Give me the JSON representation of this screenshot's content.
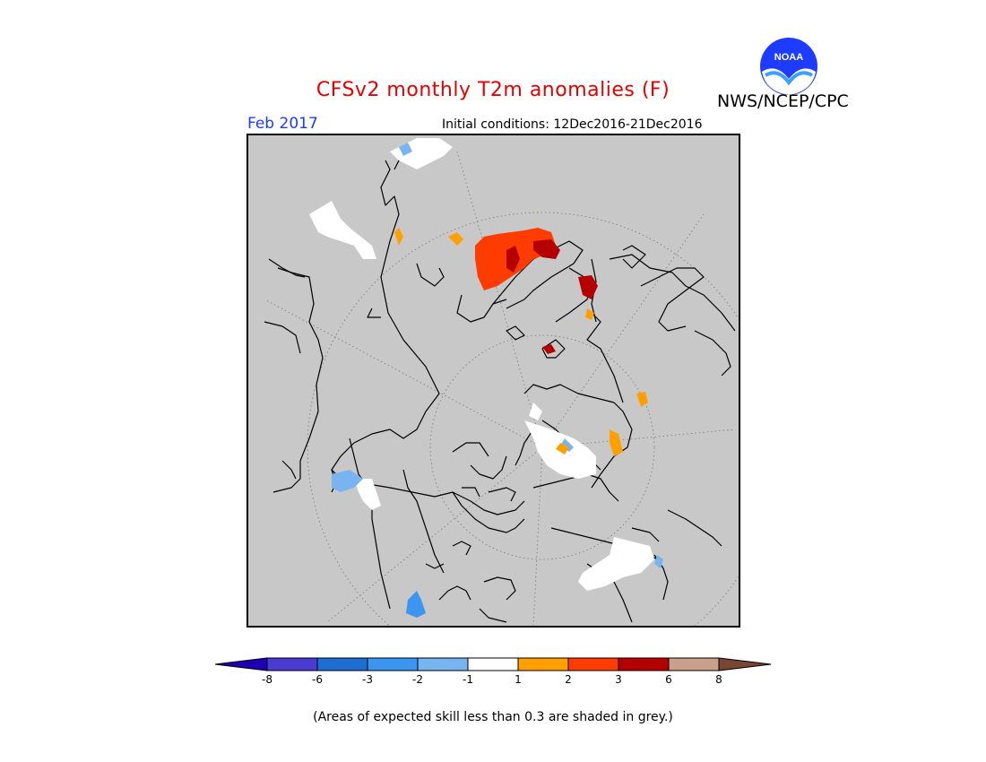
{
  "header": {
    "title": "CFSv2 monthly T2m anomalies (F)",
    "organization": "NWS/NCEP/CPC",
    "logo_text": "NOAA",
    "period": "Feb 2017",
    "initial_conditions": "Initial conditions: 12Dec2016-21Dec2016"
  },
  "map": {
    "projection": "north polar stereographic",
    "background_color": "#c8c8c8",
    "coastline_color": "#000000"
  },
  "colorbar": {
    "ticks": [
      "-8",
      "-6",
      "-3",
      "-2",
      "-1",
      "1",
      "2",
      "3",
      "6",
      "8"
    ],
    "colors": [
      "#1e00b4",
      "#4a3cd2",
      "#1e6ed2",
      "#3c96f0",
      "#78b4f0",
      "#ffffff",
      "#ffa000",
      "#ff3c00",
      "#b40000",
      "#c8a08c",
      "#784632"
    ]
  },
  "footnote": "(Areas of expected skill less than 0.3 are shaded in grey.)"
}
